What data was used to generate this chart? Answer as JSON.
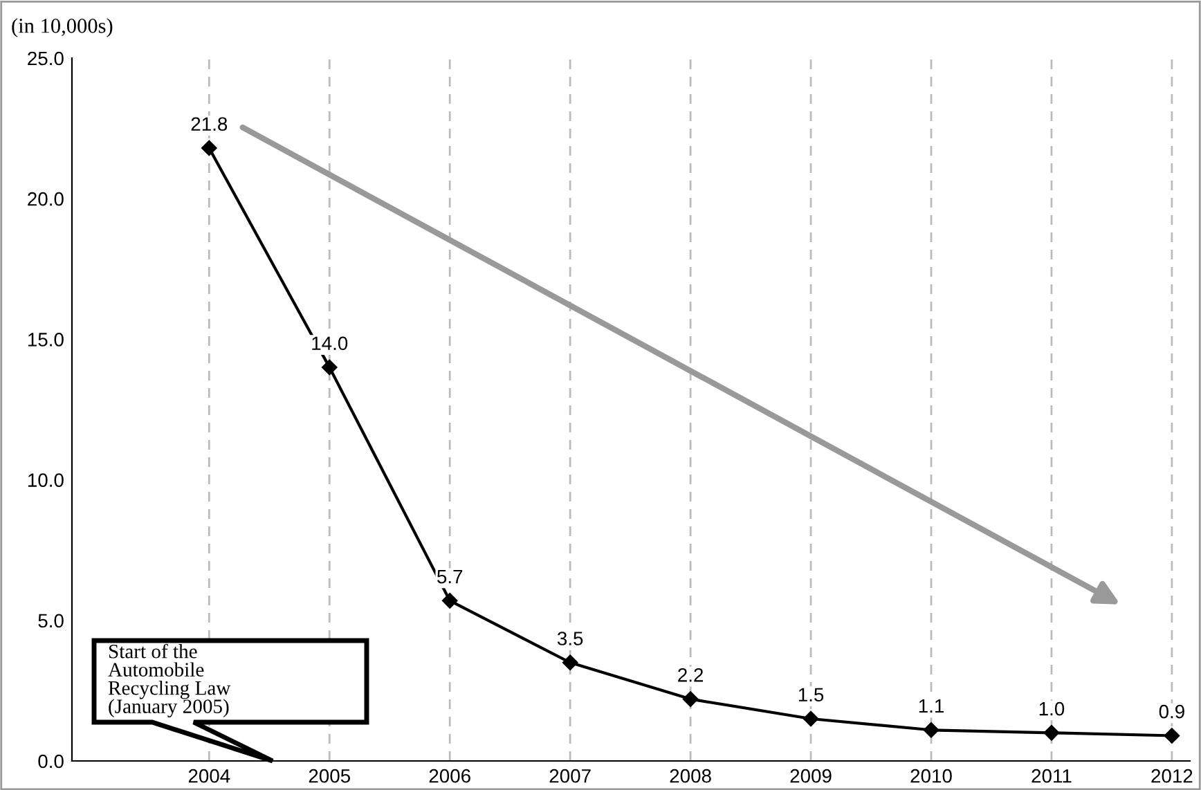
{
  "chart_data": {
    "type": "line",
    "ylabel": "(in 10,000s)",
    "categories": [
      "2004",
      "2005",
      "2006",
      "2007",
      "2008",
      "2009",
      "2010",
      "2011",
      "2012"
    ],
    "series": [
      {
        "color": "#000000",
        "values": [
          21.8,
          14.0,
          5.7,
          3.5,
          2.2,
          1.5,
          1.1,
          1.0,
          0.9
        ],
        "value_labels": [
          "21.8",
          "14.0",
          "5.7",
          "3.5",
          "2.2",
          "1.5",
          "1.1",
          "1.0",
          "0.9"
        ]
      }
    ],
    "ylim": [
      0,
      25
    ],
    "yticks": [
      {
        "value": 0,
        "label": "0.0"
      },
      {
        "value": 5,
        "label": "5.0"
      },
      {
        "value": 10,
        "label": "10.0"
      },
      {
        "value": 15,
        "label": "15.0"
      },
      {
        "value": 20,
        "label": "20.0"
      },
      {
        "value": 25,
        "label": "25.0"
      }
    ],
    "grid": "x",
    "marker": "diamond",
    "line_style": "solid",
    "annotations": [
      "Start of the\nAutomobile\nRecycling Law\n(January 2005)"
    ]
  }
}
